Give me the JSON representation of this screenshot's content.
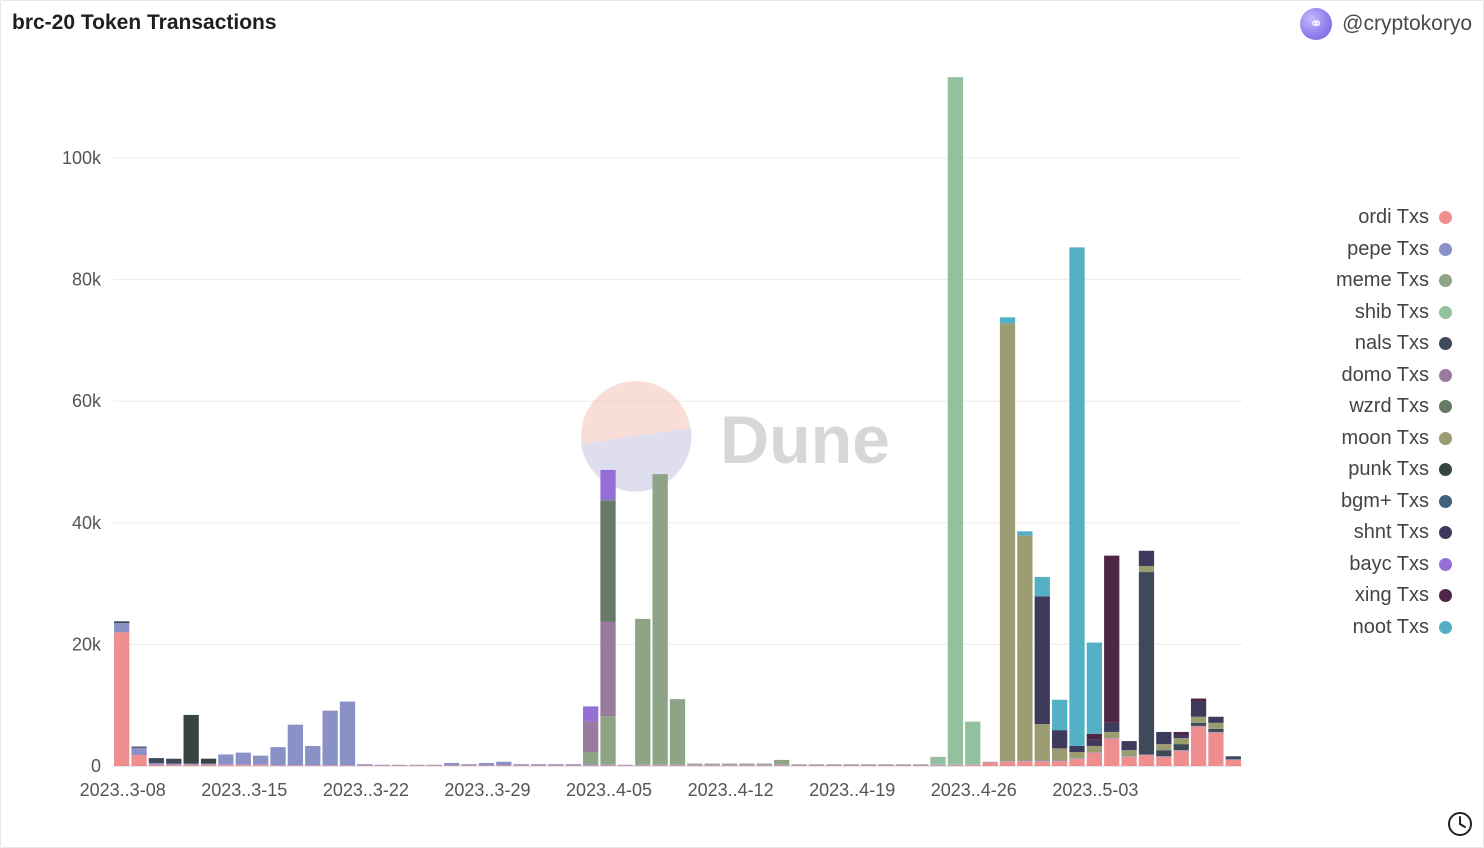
{
  "header": {
    "title": "brc-20 Token Transactions",
    "author": "@cryptokoryo"
  },
  "watermark": {
    "text": "Dune"
  },
  "chart_data": {
    "type": "bar",
    "stacked": true,
    "title": "brc-20 Token Transactions",
    "xlabel": "",
    "ylabel": "",
    "ylim": [
      0,
      114000
    ],
    "yticks": [
      0,
      20000,
      40000,
      60000,
      80000,
      100000
    ],
    "ytick_labels": [
      "0",
      "20k",
      "40k",
      "60k",
      "80k",
      "100k"
    ],
    "xtick_labels": [
      {
        "index": 0,
        "label": "2023..3-08"
      },
      {
        "index": 7,
        "label": "2023..3-15"
      },
      {
        "index": 14,
        "label": "2023..3-22"
      },
      {
        "index": 21,
        "label": "2023..3-29"
      },
      {
        "index": 28,
        "label": "2023..4-05"
      },
      {
        "index": 35,
        "label": "2023..4-12"
      },
      {
        "index": 42,
        "label": "2023..4-19"
      },
      {
        "index": 49,
        "label": "2023..4-26"
      },
      {
        "index": 56,
        "label": "2023..5-03"
      }
    ],
    "categories": [
      "2023-03-08",
      "2023-03-09",
      "2023-03-10",
      "2023-03-11",
      "2023-03-12",
      "2023-03-13",
      "2023-03-14",
      "2023-03-15",
      "2023-03-16",
      "2023-03-17",
      "2023-03-18",
      "2023-03-19",
      "2023-03-20",
      "2023-03-21",
      "2023-03-22",
      "2023-03-23",
      "2023-03-24",
      "2023-03-25",
      "2023-03-26",
      "2023-03-27",
      "2023-03-28",
      "2023-03-29",
      "2023-03-30",
      "2023-03-31",
      "2023-04-01",
      "2023-04-02",
      "2023-04-03",
      "2023-04-04",
      "2023-04-05",
      "2023-04-06",
      "2023-04-07",
      "2023-04-08",
      "2023-04-09",
      "2023-04-10",
      "2023-04-11",
      "2023-04-12",
      "2023-04-13",
      "2023-04-14",
      "2023-04-15",
      "2023-04-16",
      "2023-04-17",
      "2023-04-18",
      "2023-04-19",
      "2023-04-20",
      "2023-04-21",
      "2023-04-22",
      "2023-04-23",
      "2023-04-24",
      "2023-04-25",
      "2023-04-26",
      "2023-04-27",
      "2023-04-28",
      "2023-04-29",
      "2023-04-30",
      "2023-05-01",
      "2023-05-02",
      "2023-05-03",
      "2023-05-04",
      "2023-05-05",
      "2023-05-06",
      "2023-05-07",
      "2023-05-08",
      "2023-05-09",
      "2023-05-10",
      "2023-05-11"
    ],
    "legend_position": "right",
    "series": [
      {
        "name": "ordi Txs",
        "color": "#ef8e8e",
        "values": [
          22000,
          1800,
          200,
          200,
          200,
          200,
          200,
          200,
          200,
          100,
          100,
          100,
          100,
          100,
          100,
          100,
          100,
          100,
          100,
          100,
          100,
          100,
          100,
          100,
          100,
          100,
          100,
          100,
          100,
          100,
          100,
          100,
          100,
          100,
          100,
          100,
          100,
          100,
          100,
          100,
          100,
          100,
          100,
          100,
          100,
          100,
          100,
          100,
          100,
          200,
          600,
          700,
          800,
          800,
          800,
          1200,
          2200,
          4500,
          1500,
          1800,
          1500,
          2500,
          6500,
          5500,
          1000
        ]
      },
      {
        "name": "pepe Txs",
        "color": "#8a91c7",
        "values": [
          1500,
          1200,
          300,
          200,
          200,
          200,
          1700,
          2000,
          1500,
          3000,
          6700,
          3200,
          9000,
          10500,
          200,
          100,
          100,
          100,
          100,
          400,
          200,
          400,
          600,
          200,
          200,
          200,
          200,
          200,
          100,
          100,
          100,
          100,
          100,
          100,
          100,
          100,
          100,
          100,
          100,
          100,
          100,
          100,
          100,
          100,
          100,
          100,
          100,
          100,
          100,
          100,
          100,
          100,
          100,
          100,
          100,
          100,
          100,
          100,
          100,
          100,
          100,
          100,
          100,
          100,
          100
        ]
      },
      {
        "name": "meme Txs",
        "color": "#8fa387",
        "values": [
          0,
          0,
          0,
          0,
          0,
          0,
          0,
          0,
          0,
          0,
          0,
          0,
          0,
          0,
          0,
          0,
          0,
          0,
          0,
          0,
          0,
          0,
          0,
          0,
          0,
          0,
          0,
          2000,
          8000,
          0,
          24000,
          47800,
          10800,
          200,
          200,
          200,
          200,
          200,
          800,
          100,
          100,
          100,
          100,
          100,
          100,
          100,
          100,
          100,
          100,
          0,
          0,
          0,
          0,
          0,
          0,
          0,
          0,
          0,
          0,
          0,
          0,
          0,
          0,
          0,
          0
        ]
      },
      {
        "name": "shib Txs",
        "color": "#93c1a0",
        "values": [
          0,
          0,
          0,
          0,
          0,
          0,
          0,
          0,
          0,
          0,
          0,
          0,
          0,
          0,
          0,
          0,
          0,
          0,
          0,
          0,
          0,
          0,
          0,
          0,
          0,
          0,
          0,
          0,
          0,
          0,
          0,
          0,
          0,
          0,
          0,
          0,
          0,
          0,
          0,
          0,
          0,
          0,
          0,
          0,
          0,
          0,
          0,
          1200,
          113000,
          7000,
          0,
          0,
          0,
          0,
          0,
          0,
          0,
          0,
          0,
          0,
          0,
          0,
          0,
          0,
          0
        ]
      },
      {
        "name": "nals Txs",
        "color": "#3f4a58",
        "values": [
          300,
          200,
          800,
          800,
          0,
          0,
          0,
          0,
          0,
          0,
          0,
          0,
          0,
          0,
          0,
          0,
          0,
          0,
          0,
          0,
          0,
          0,
          0,
          0,
          0,
          0,
          0,
          0,
          0,
          0,
          0,
          0,
          0,
          0,
          0,
          0,
          0,
          0,
          0,
          0,
          0,
          0,
          0,
          0,
          0,
          0,
          0,
          0,
          0,
          0,
          0,
          0,
          0,
          0,
          0,
          0,
          0,
          0,
          0,
          30000,
          1000,
          1000,
          500,
          500,
          500
        ]
      },
      {
        "name": "domo Txs",
        "color": "#9a7a9e",
        "values": [
          0,
          0,
          0,
          0,
          0,
          0,
          0,
          0,
          0,
          0,
          0,
          0,
          0,
          0,
          0,
          0,
          0,
          0,
          0,
          0,
          0,
          0,
          0,
          0,
          0,
          0,
          0,
          5000,
          15500,
          0,
          0,
          0,
          0,
          0,
          0,
          0,
          0,
          0,
          0,
          0,
          0,
          0,
          0,
          0,
          0,
          0,
          0,
          0,
          0,
          0,
          0,
          0,
          0,
          0,
          0,
          0,
          0,
          0,
          0,
          0,
          0,
          0,
          0,
          0,
          0
        ]
      },
      {
        "name": "wzrd Txs",
        "color": "#677a65",
        "values": [
          0,
          0,
          0,
          0,
          0,
          0,
          0,
          0,
          0,
          0,
          0,
          0,
          0,
          0,
          0,
          0,
          0,
          0,
          0,
          0,
          0,
          0,
          0,
          0,
          0,
          0,
          0,
          0,
          20000,
          0,
          0,
          0,
          0,
          0,
          0,
          0,
          0,
          0,
          0,
          0,
          0,
          0,
          0,
          0,
          0,
          0,
          0,
          0,
          0,
          0,
          0,
          0,
          0,
          0,
          0,
          0,
          0,
          0,
          0,
          0,
          0,
          0,
          0,
          0,
          0
        ]
      },
      {
        "name": "moon Txs",
        "color": "#9b9d71",
        "values": [
          0,
          0,
          0,
          0,
          0,
          0,
          0,
          0,
          0,
          0,
          0,
          0,
          0,
          0,
          0,
          0,
          0,
          0,
          0,
          0,
          0,
          0,
          0,
          0,
          0,
          0,
          0,
          0,
          0,
          0,
          0,
          0,
          0,
          0,
          0,
          0,
          0,
          0,
          0,
          0,
          0,
          0,
          0,
          0,
          0,
          0,
          0,
          0,
          0,
          0,
          0,
          72000,
          37000,
          6000,
          2000,
          1000,
          1000,
          1000,
          1000,
          1000,
          1000,
          1000,
          1000,
          1000,
          0
        ]
      },
      {
        "name": "punk Txs",
        "color": "#364542",
        "values": [
          0,
          0,
          0,
          0,
          8000,
          800,
          0,
          0,
          0,
          0,
          0,
          0,
          0,
          0,
          0,
          0,
          0,
          0,
          0,
          0,
          0,
          0,
          0,
          0,
          0,
          0,
          0,
          0,
          0,
          0,
          0,
          0,
          0,
          0,
          0,
          0,
          0,
          0,
          0,
          0,
          0,
          0,
          0,
          0,
          0,
          0,
          0,
          0,
          0,
          0,
          0,
          0,
          0,
          0,
          0,
          0,
          0,
          0,
          0,
          0,
          0,
          0,
          0,
          0,
          0
        ]
      },
      {
        "name": "bgm+ Txs",
        "color": "#41607e",
        "values": [
          0,
          0,
          0,
          0,
          0,
          0,
          0,
          0,
          0,
          0,
          0,
          0,
          0,
          0,
          0,
          0,
          0,
          0,
          0,
          0,
          0,
          0,
          0,
          0,
          0,
          0,
          0,
          0,
          0,
          0,
          0,
          0,
          0,
          0,
          0,
          0,
          0,
          0,
          0,
          0,
          0,
          0,
          0,
          0,
          0,
          0,
          0,
          0,
          0,
          0,
          0,
          0,
          0,
          0,
          0,
          0,
          0,
          0,
          0,
          0,
          0,
          0,
          0,
          0,
          0
        ]
      },
      {
        "name": "shnt Txs",
        "color": "#3d3a5c",
        "values": [
          0,
          0,
          0,
          0,
          0,
          0,
          0,
          0,
          0,
          0,
          0,
          0,
          0,
          0,
          0,
          0,
          0,
          0,
          0,
          0,
          0,
          0,
          0,
          0,
          0,
          0,
          0,
          0,
          0,
          0,
          0,
          0,
          0,
          0,
          0,
          0,
          0,
          0,
          0,
          0,
          0,
          0,
          0,
          0,
          0,
          0,
          0,
          0,
          0,
          0,
          0,
          0,
          0,
          21000,
          3000,
          1000,
          1000,
          1500,
          1500,
          2500,
          2000,
          500,
          2500,
          1000,
          0
        ]
      },
      {
        "name": "bayc Txs",
        "color": "#9470d6",
        "values": [
          0,
          0,
          0,
          0,
          0,
          0,
          0,
          0,
          0,
          0,
          0,
          0,
          0,
          0,
          0,
          0,
          0,
          0,
          0,
          0,
          0,
          0,
          0,
          0,
          0,
          0,
          0,
          2500,
          5000,
          0,
          0,
          0,
          0,
          0,
          0,
          0,
          0,
          0,
          0,
          0,
          0,
          0,
          0,
          0,
          0,
          0,
          0,
          0,
          0,
          0,
          0,
          0,
          0,
          0,
          0,
          0,
          0,
          0,
          0,
          0,
          0,
          0,
          0,
          0,
          0
        ]
      },
      {
        "name": "xing Txs",
        "color": "#4f2746",
        "values": [
          0,
          0,
          0,
          0,
          0,
          0,
          0,
          0,
          0,
          0,
          0,
          0,
          0,
          0,
          0,
          0,
          0,
          0,
          0,
          0,
          0,
          0,
          0,
          0,
          0,
          0,
          0,
          0,
          0,
          0,
          0,
          0,
          0,
          0,
          0,
          0,
          0,
          0,
          0,
          0,
          0,
          0,
          0,
          0,
          0,
          0,
          0,
          0,
          0,
          0,
          0,
          0,
          0,
          0,
          0,
          0,
          1000,
          27500,
          0,
          0,
          0,
          500,
          500,
          0,
          0
        ]
      },
      {
        "name": "noot Txs",
        "color": "#54b0c4",
        "values": [
          0,
          0,
          0,
          0,
          0,
          0,
          0,
          0,
          0,
          0,
          0,
          0,
          0,
          0,
          0,
          0,
          0,
          0,
          0,
          0,
          0,
          0,
          0,
          0,
          0,
          0,
          0,
          0,
          0,
          0,
          0,
          0,
          0,
          0,
          0,
          0,
          0,
          0,
          0,
          0,
          0,
          0,
          0,
          0,
          0,
          0,
          0,
          0,
          0,
          0,
          0,
          1000,
          700,
          3200,
          5000,
          82000,
          15000,
          0,
          0,
          0,
          0,
          0,
          0,
          0,
          0
        ]
      }
    ]
  }
}
